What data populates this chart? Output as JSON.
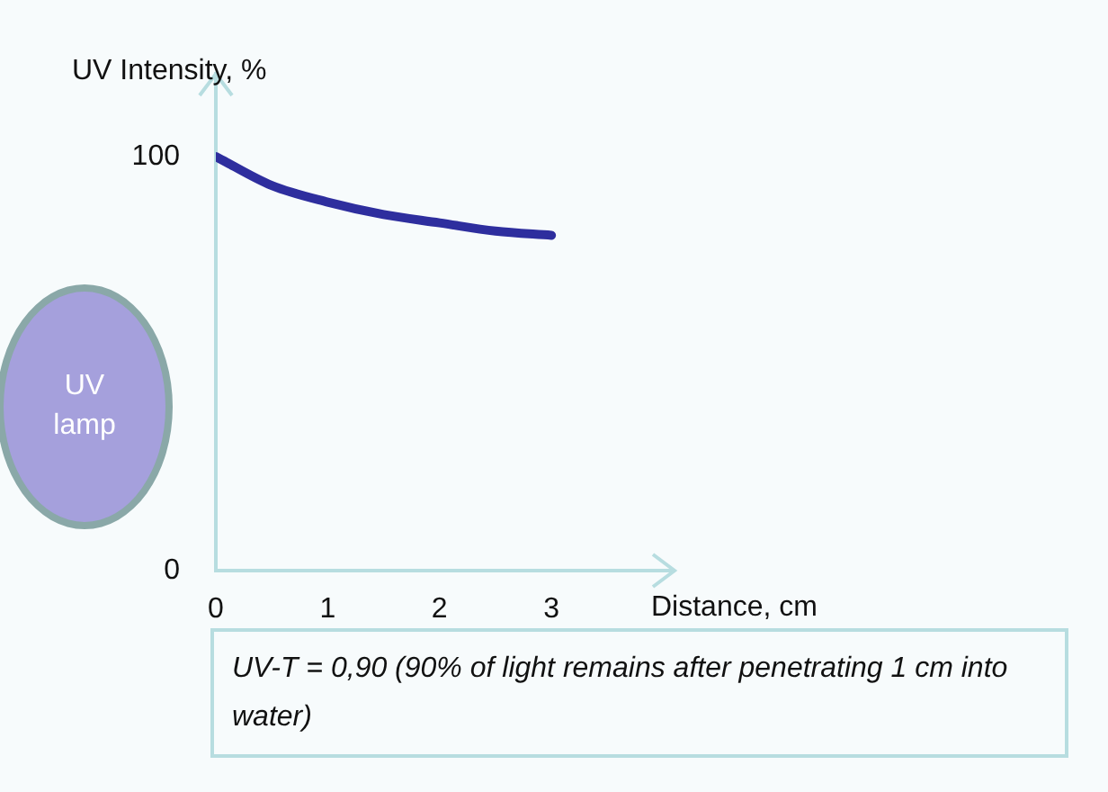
{
  "chart_data": {
    "type": "line",
    "xlabel": "Distance, cm",
    "ylabel": "UV Intensity, %",
    "x": [
      0,
      0.5,
      1,
      1.5,
      2,
      2.5,
      3
    ],
    "series": [
      {
        "color": "#2e2e9e",
        "values": [
          100,
          93,
          89,
          86,
          84,
          82,
          81
        ]
      }
    ],
    "xlim": [
      0,
      4.1
    ],
    "xticks": [
      0,
      1,
      2,
      3
    ],
    "ylim": [
      0,
      120
    ],
    "yticks": [
      0,
      100
    ],
    "grid": false,
    "legend": false,
    "marker": "none",
    "line_style": "solid",
    "annotations": [
      "UV lamp",
      "UV-T = 0,90 (90% of light remains after penetrating 1 cm into water)"
    ]
  }
}
